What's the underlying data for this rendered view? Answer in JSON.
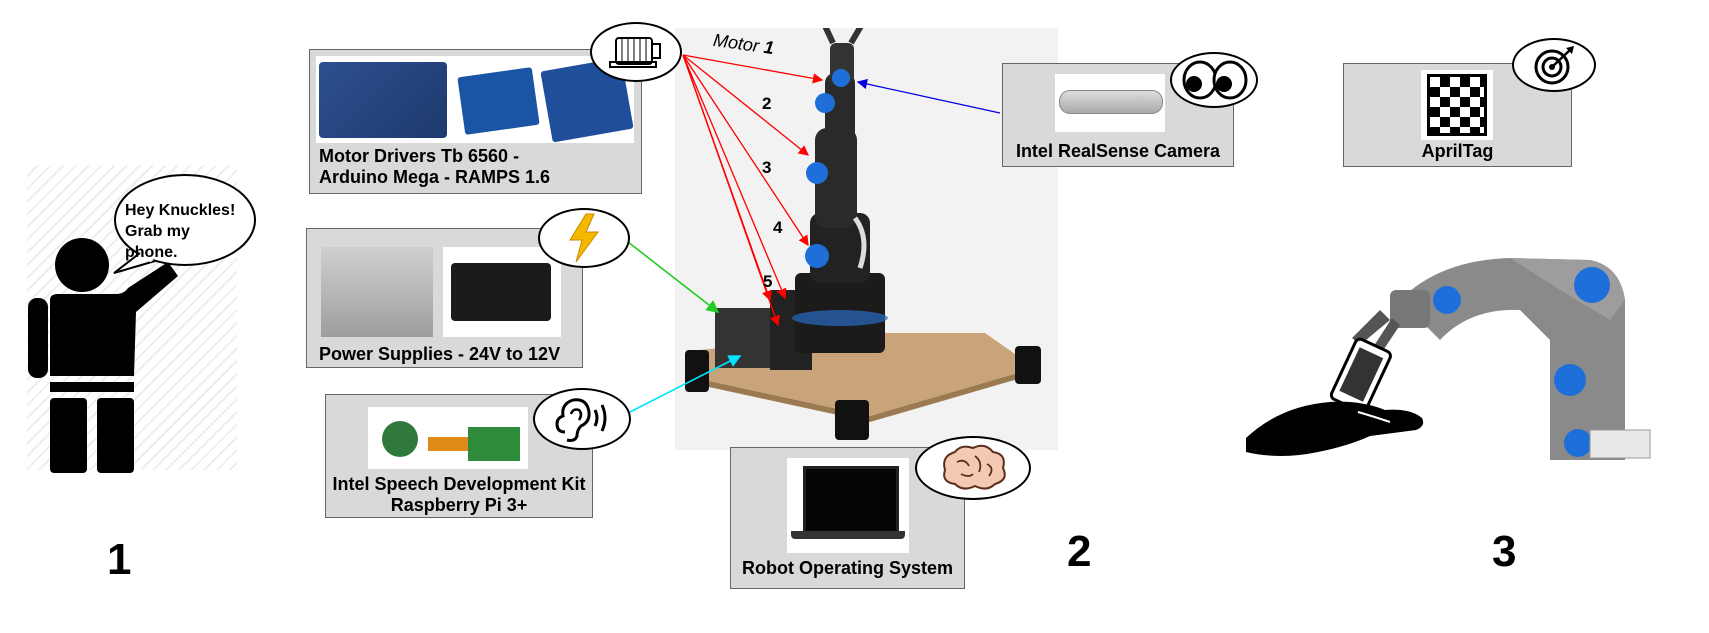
{
  "speech": {
    "line1": "Hey Knuckles!",
    "line2": "Grab my phone."
  },
  "stages": [
    "1",
    "2",
    "3"
  ],
  "components": {
    "motor_drivers": {
      "line1": "Motor Drivers Tb 6560 -",
      "line2": "Arduino Mega - RAMPS 1.6"
    },
    "power": {
      "label": "Power Supplies - 24V to 12V"
    },
    "speech_kit": {
      "line1": "Intel Speech Development Kit",
      "line2": "Raspberry Pi 3+"
    },
    "ros": {
      "label": "Robot Operating System"
    },
    "camera": {
      "label": "Intel RealSense Camera"
    },
    "apriltag": {
      "label": "AprilTag"
    }
  },
  "motors": {
    "motor1_prefix": "Motor",
    "m1": "1",
    "m2": "2",
    "m3": "3",
    "m4": "4",
    "m5": "5"
  },
  "icons": [
    "motor-icon",
    "lightning-icon",
    "ear-icon",
    "brain-icon",
    "eyes-icon",
    "target-icon"
  ],
  "colors": {
    "motor_lines": "#ff0000",
    "power_line": "#22cc22",
    "speech_line": "#00e5ff",
    "camera_line": "#0000dd",
    "robot_blue": "#1e6fd9"
  }
}
